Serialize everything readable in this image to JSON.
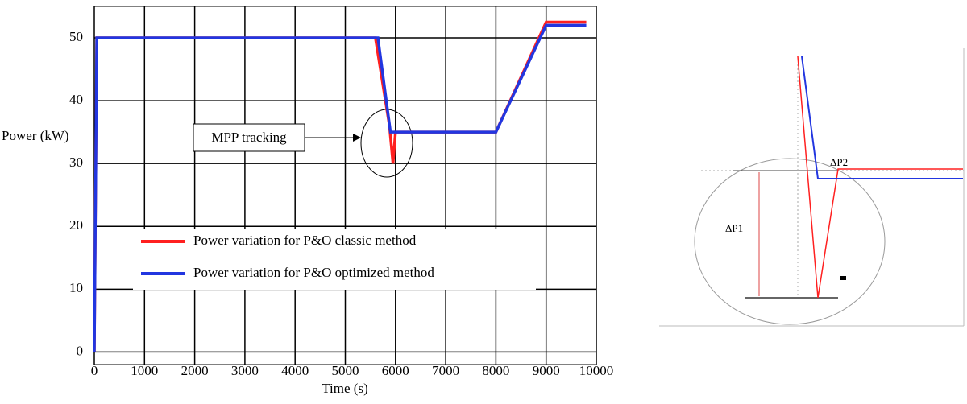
{
  "chart_data": {
    "type": "line",
    "xlabel": "Time (s)",
    "ylabel": "Power (kW)",
    "xlim": [
      0,
      10000
    ],
    "ylim": [
      -2,
      55
    ],
    "xticks": [
      0,
      1000,
      2000,
      3000,
      4000,
      5000,
      6000,
      7000,
      8000,
      9000,
      10000
    ],
    "yticks": [
      0,
      10,
      20,
      30,
      40,
      50
    ],
    "grid": true,
    "series": [
      {
        "name": "Power variation for P&O classic method",
        "color": "#ff2020",
        "x": [
          0,
          50,
          5600,
          5880,
          5950,
          6000,
          8000,
          9000,
          9800
        ],
        "values": [
          0,
          50,
          50,
          36,
          30,
          35,
          35,
          52.5,
          52.5
        ]
      },
      {
        "name": "Power variation for P&O optimized method",
        "color": "#2236e0",
        "x": [
          0,
          50,
          5650,
          5900,
          8000,
          9000,
          9800
        ],
        "values": [
          0,
          50,
          50,
          35,
          35,
          52,
          52
        ]
      }
    ],
    "annotations": [
      "MPP tracking"
    ],
    "inset_labels": [
      "ΔP1",
      "ΔP2"
    ]
  }
}
